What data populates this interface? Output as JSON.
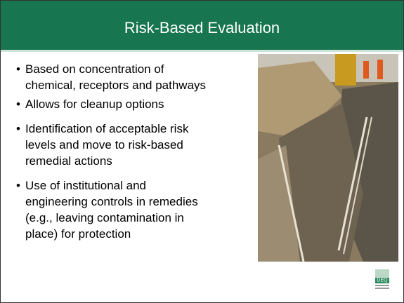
{
  "header": {
    "title": "Risk-Based Evaluation"
  },
  "bullets": [
    {
      "lines": [
        "Based on concentration of",
        "chemical, receptors and pathways"
      ]
    },
    {
      "lines": [
        "Allows for cleanup options"
      ]
    },
    {
      "lines": [
        "Identification of acceptable risk",
        "levels and move to risk-based",
        "remedial actions"
      ]
    },
    {
      "lines": [
        "Use of institutional and",
        "engineering controls in remedies",
        "(e.g., leaving contamination in",
        "place) for protection"
      ]
    }
  ],
  "logo": {
    "text": "DEQ"
  }
}
